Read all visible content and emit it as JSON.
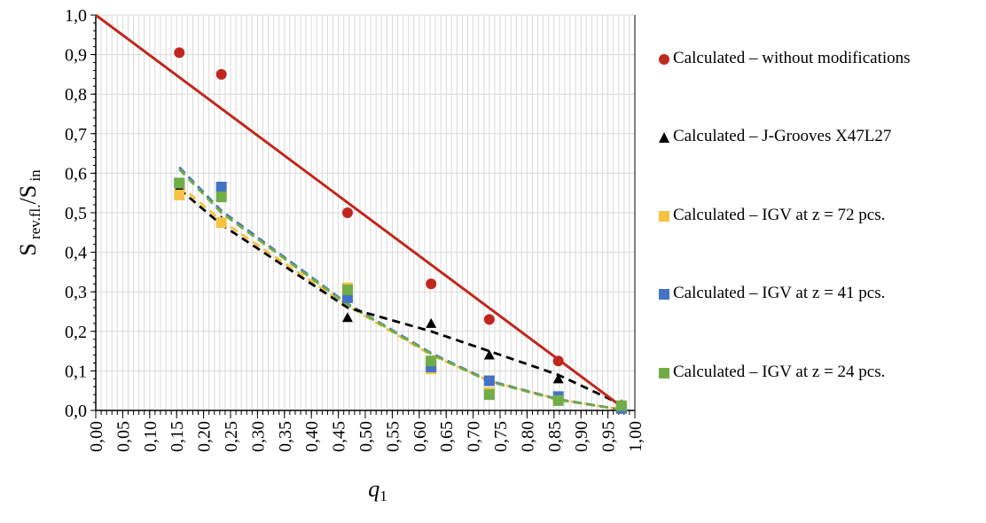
{
  "chart_data": {
    "type": "scatter",
    "xlabel": "q1",
    "xlabel_main": "q",
    "xlabel_sub": "1",
    "ylabel_main_1": "S",
    "ylabel_sub_1": " rev.fl.",
    "ylabel_sep": "/S",
    "ylabel_sub_2": " in",
    "xlim": [
      0,
      1
    ],
    "ylim": [
      0,
      1
    ],
    "x_ticks": [
      "0,00",
      "0,05",
      "0,10",
      "0,15",
      "0,20",
      "0,25",
      "0,30",
      "0,35",
      "0,40",
      "0,45",
      "0,50",
      "0,55",
      "0,60",
      "0,65",
      "0,70",
      "0,75",
      "0,80",
      "0,85",
      "0,90",
      "0,95",
      "1,00"
    ],
    "y_ticks": [
      "0,0",
      "0,1",
      "0,2",
      "0,3",
      "0,4",
      "0,5",
      "0,6",
      "0,7",
      "0,8",
      "0,9",
      "1,0"
    ],
    "grid": true,
    "legend_position": "right",
    "series": [
      {
        "name": "Calculated – without modifications",
        "marker": "circle",
        "color": "#C0281E",
        "trend": "linear",
        "trend_line": [
          [
            0.0,
            1.0
          ],
          [
            0.975,
            0.01
          ]
        ],
        "points": [
          [
            0.155,
            0.905
          ],
          [
            0.233,
            0.85
          ],
          [
            0.467,
            0.5
          ],
          [
            0.622,
            0.32
          ],
          [
            0.73,
            0.23
          ],
          [
            0.858,
            0.125
          ],
          [
            0.975,
            0.01
          ]
        ]
      },
      {
        "name": "Calculated – J-Grooves X47L27",
        "marker": "triangle",
        "color": "#000000",
        "trend": "dashed",
        "trend_line": [
          [
            0.155,
            0.56
          ],
          [
            0.233,
            0.47
          ],
          [
            0.467,
            0.26
          ],
          [
            0.622,
            0.2
          ],
          [
            0.73,
            0.15
          ],
          [
            0.858,
            0.09
          ],
          [
            0.975,
            0.015
          ]
        ],
        "points": [
          [
            0.155,
            0.565
          ],
          [
            0.233,
            0.48
          ],
          [
            0.467,
            0.235
          ],
          [
            0.622,
            0.22
          ],
          [
            0.73,
            0.14
          ],
          [
            0.858,
            0.08
          ],
          [
            0.975,
            0.015
          ]
        ]
      },
      {
        "name": "Calculated – IGV at z = 72 pcs.",
        "marker": "square",
        "color": "#F5C242",
        "trend": "dashed",
        "trend_line": [
          [
            0.155,
            0.57
          ],
          [
            0.233,
            0.48
          ],
          [
            0.467,
            0.265
          ],
          [
            0.622,
            0.14
          ],
          [
            0.73,
            0.075
          ],
          [
            0.858,
            0.028
          ],
          [
            0.975,
            0.002
          ]
        ],
        "points": [
          [
            0.155,
            0.545
          ],
          [
            0.233,
            0.475
          ],
          [
            0.467,
            0.31
          ],
          [
            0.622,
            0.105
          ],
          [
            0.73,
            0.045
          ],
          [
            0.858,
            0.025
          ],
          [
            0.975,
            0.005
          ]
        ]
      },
      {
        "name": "Calculated – IGV at z = 41 pcs.",
        "marker": "square",
        "color": "#4472C4",
        "trend": "dashed",
        "trend_line": [
          [
            0.155,
            0.615
          ],
          [
            0.233,
            0.505
          ],
          [
            0.467,
            0.27
          ],
          [
            0.622,
            0.145
          ],
          [
            0.73,
            0.075
          ],
          [
            0.858,
            0.028
          ],
          [
            0.975,
            0.002
          ]
        ],
        "points": [
          [
            0.155,
            0.575
          ],
          [
            0.233,
            0.565
          ],
          [
            0.467,
            0.285
          ],
          [
            0.622,
            0.11
          ],
          [
            0.73,
            0.075
          ],
          [
            0.858,
            0.035
          ],
          [
            0.975,
            0.005
          ]
        ]
      },
      {
        "name": "Calculated – IGV at z = 24 pcs.",
        "marker": "square",
        "color": "#70AD47",
        "trend": "dashed",
        "trend_line": [
          [
            0.155,
            0.61
          ],
          [
            0.233,
            0.5
          ],
          [
            0.467,
            0.268
          ],
          [
            0.622,
            0.143
          ],
          [
            0.73,
            0.073
          ],
          [
            0.858,
            0.027
          ],
          [
            0.975,
            0.002
          ]
        ],
        "points": [
          [
            0.155,
            0.575
          ],
          [
            0.233,
            0.54
          ],
          [
            0.467,
            0.305
          ],
          [
            0.622,
            0.125
          ],
          [
            0.73,
            0.04
          ],
          [
            0.858,
            0.025
          ],
          [
            0.975,
            0.012
          ]
        ]
      }
    ]
  }
}
